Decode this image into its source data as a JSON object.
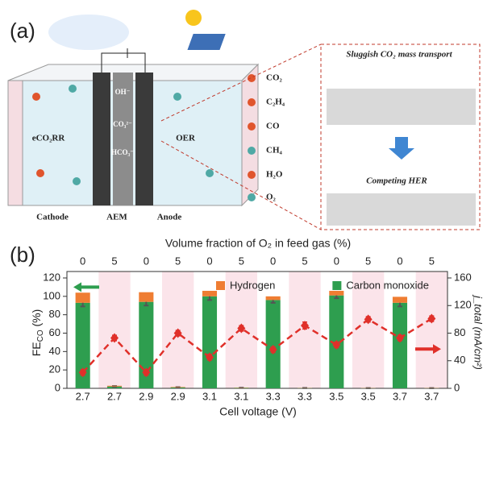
{
  "schematic": {
    "panel_label": "(a)",
    "cell_labels": [
      "eCO₂RR",
      "OER",
      "Cathode",
      "AEM",
      "Anode"
    ],
    "ion_labels": [
      "OH⁻",
      "CO₃²⁻",
      "HCO₃⁻"
    ],
    "molecule_legend": [
      "CO₂",
      "C₂H₄",
      "CO",
      "CH₄",
      "H₂O",
      "O₂"
    ],
    "inset_labels": [
      "Sluggish CO₂ mass transport",
      "Competing HER"
    ]
  },
  "chart_data": {
    "type": "bar",
    "panel_label": "(b)",
    "stacked": true,
    "xlabel": "Cell voltage (V)",
    "top_xlabel": "Volume fraction of O₂ in feed gas (%)",
    "categories": [
      "2.7",
      "2.7",
      "2.9",
      "2.9",
      "3.1",
      "3.1",
      "3.3",
      "3.3",
      "3.5",
      "3.5",
      "3.7",
      "3.7"
    ],
    "top_categories": [
      "0",
      "5",
      "0",
      "5",
      "0",
      "5",
      "0",
      "5",
      "0",
      "5",
      "0",
      "5"
    ],
    "ylabel": {
      "main": "FE",
      "sub": "CO",
      "tail": " (%)"
    },
    "y2label": "j_total (mA/cm²)",
    "ylim": [
      0,
      120
    ],
    "yticks": [
      0,
      20,
      40,
      60,
      80,
      100,
      120
    ],
    "y2lim": [
      0,
      160
    ],
    "y2ticks": [
      0,
      40,
      80,
      120,
      160
    ],
    "legend": "top",
    "highlight_color": "#fbe4ea",
    "series": [
      {
        "name": "Hydrogen",
        "color": "#ef7d32",
        "values": [
          11,
          0.8,
          10.5,
          0.5,
          6,
          0.3,
          4,
          0.2,
          5,
          0.2,
          6.5,
          0.2
        ]
      },
      {
        "name": "Carbon monoxide",
        "color": "#2e9e4f",
        "values": [
          93,
          2,
          94,
          1,
          100,
          0.5,
          96,
          0.3,
          101,
          0.2,
          93,
          0.2
        ],
        "errors": [
          4,
          0.5,
          4,
          0.3,
          4,
          0.2,
          3,
          0.1,
          3,
          0.1,
          4,
          0.1
        ]
      },
      {
        "type": "line",
        "axis": "y2",
        "color": "#e0302a",
        "values": [
          23,
          73,
          23,
          80,
          45,
          87,
          56,
          91,
          63,
          100,
          73,
          101
        ],
        "errors": [
          4,
          4,
          4,
          4,
          4,
          4,
          4,
          5,
          4,
          4,
          4,
          4
        ]
      }
    ]
  }
}
